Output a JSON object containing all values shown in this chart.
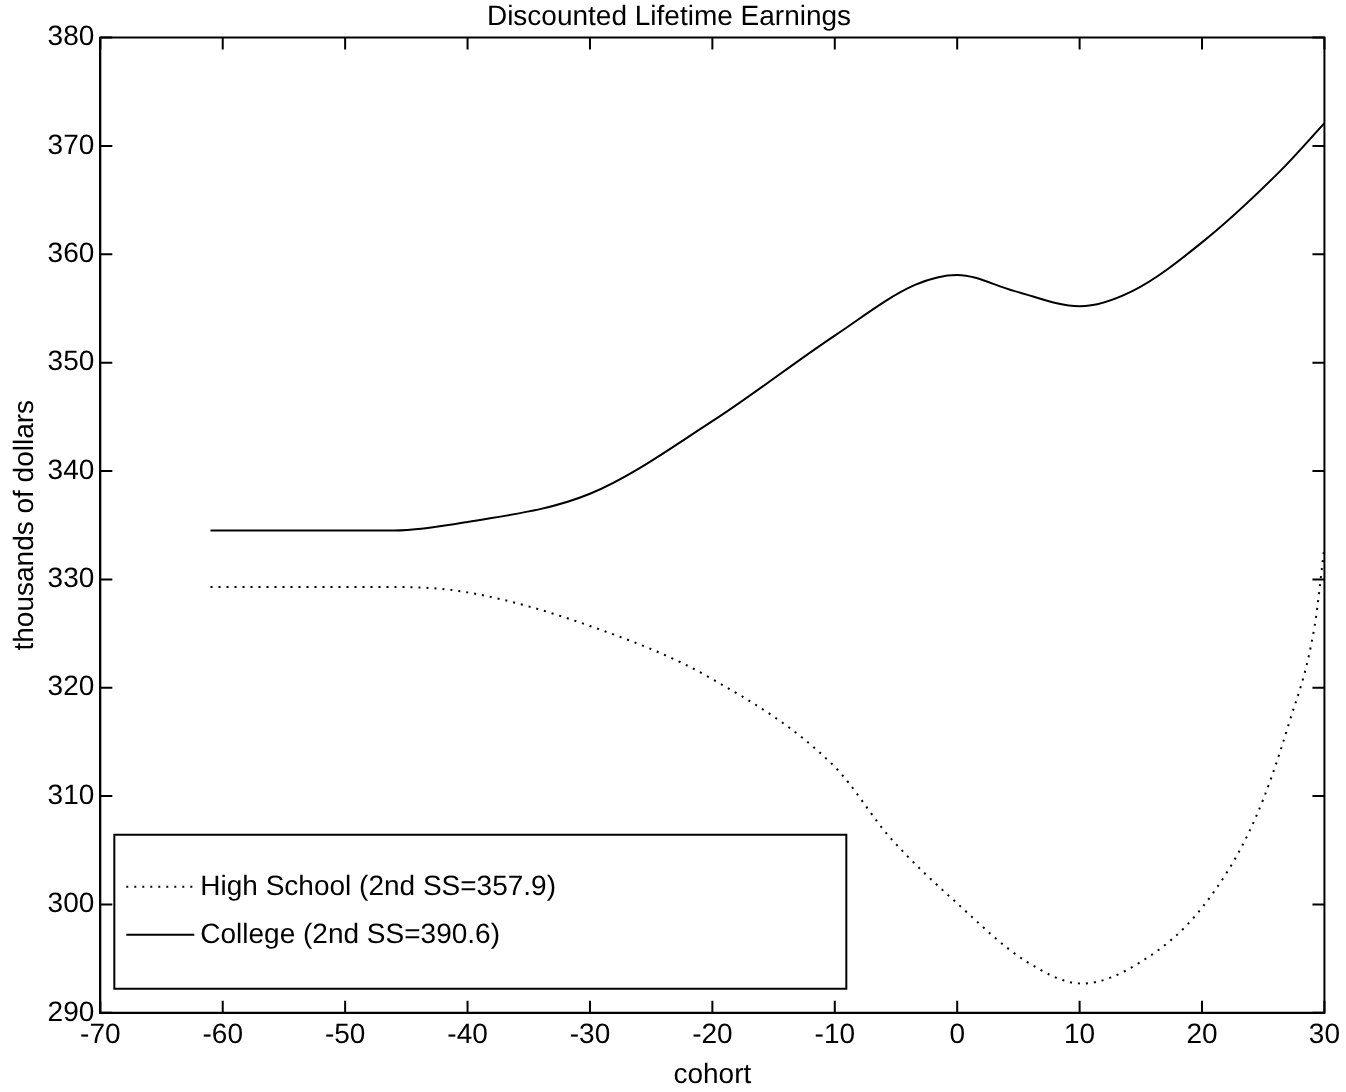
{
  "chart_data": {
    "type": "line",
    "title": "Discounted Lifetime Earnings",
    "xlabel": "cohort",
    "ylabel": "thousands of dollars",
    "xlim": [
      -70,
      30
    ],
    "xticks": [
      -70,
      -60,
      -50,
      -40,
      -30,
      -20,
      -10,
      0,
      10,
      20,
      30
    ],
    "ylim": [
      290,
      380
    ],
    "yticks": [
      290,
      300,
      310,
      320,
      330,
      340,
      350,
      360,
      370,
      380
    ],
    "grid": false,
    "legend": "bottom left",
    "marker": "none",
    "series": [
      {
        "name": "High School (2nd SS=357.9)",
        "color": "#000000",
        "line_style": "dotted",
        "x": [
          -61,
          -46,
          -40,
          -30,
          -20,
          -10,
          -5.5,
          0,
          5.7,
          10.2,
          15,
          20,
          24.3,
          27.1,
          29.2,
          30
        ],
        "values": [
          329.3,
          329.3,
          328.8,
          325.7,
          320.8,
          312.7,
          306.2,
          300.1,
          294.7,
          292.7,
          294.7,
          299.7,
          307.8,
          316.7,
          325.7,
          333
        ]
      },
      {
        "name": "College (2nd SS=390.6)",
        "color": "#000000",
        "line_style": "solid",
        "x": [
          -61,
          -46,
          -40,
          -30,
          -20,
          -10,
          -3.4,
          0,
          4.7,
          10,
          14.3,
          20,
          26.4,
          30
        ],
        "values": [
          334.5,
          334.5,
          335.3,
          337.9,
          344.6,
          352.5,
          357.2,
          358.1,
          356.6,
          355.2,
          356.6,
          361.1,
          367.7,
          372.1
        ]
      }
    ]
  }
}
